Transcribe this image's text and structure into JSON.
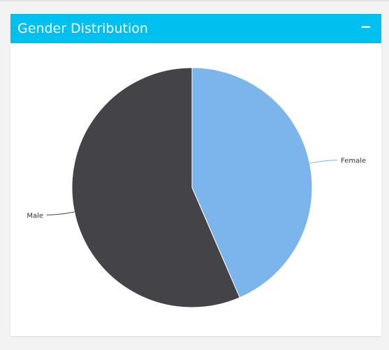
{
  "panel": {
    "title": "Gender Distribution",
    "collapse_label": "−"
  },
  "chart_data": {
    "type": "pie",
    "categories": [
      "Female",
      "Male"
    ],
    "values": [
      43.5,
      56.5
    ],
    "colors": [
      "#7cb5ec",
      "#434348"
    ],
    "slice_border_color": "#ffffff",
    "leader_line_colors": [
      "#7cb5ec",
      "#434348"
    ],
    "labels_shown": true,
    "legend": "none"
  }
}
